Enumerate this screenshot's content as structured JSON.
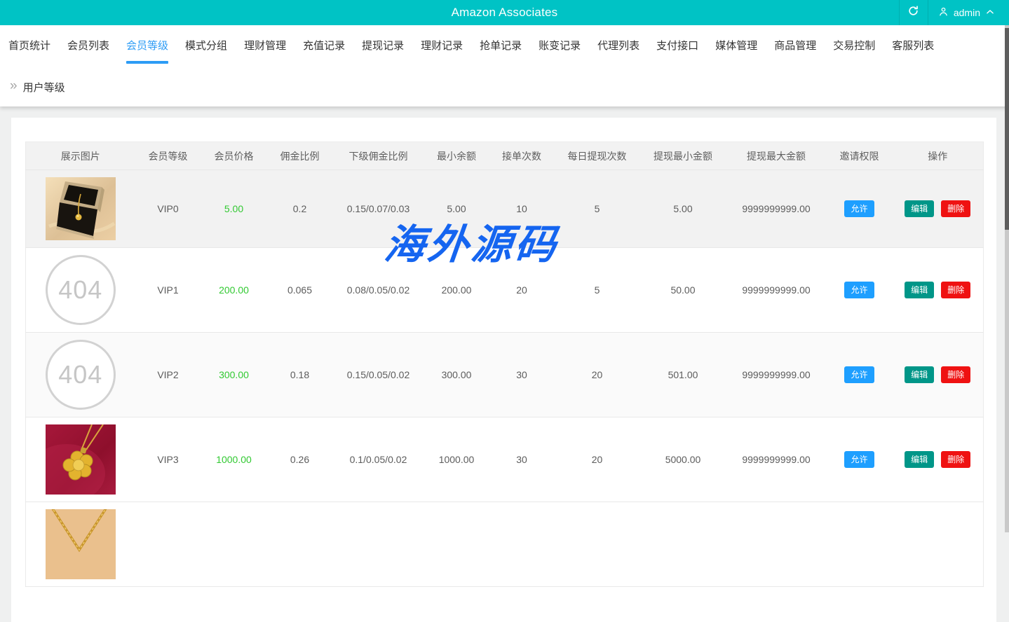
{
  "topbar": {
    "title": "Amazon Associates",
    "username": "admin"
  },
  "nav": {
    "items": [
      {
        "label": "首页统计",
        "active": false
      },
      {
        "label": "会员列表",
        "active": false
      },
      {
        "label": "会员等级",
        "active": true
      },
      {
        "label": "模式分组",
        "active": false
      },
      {
        "label": "理财管理",
        "active": false
      },
      {
        "label": "充值记录",
        "active": false
      },
      {
        "label": "提现记录",
        "active": false
      },
      {
        "label": "理财记录",
        "active": false
      },
      {
        "label": "抢单记录",
        "active": false
      },
      {
        "label": "账变记录",
        "active": false
      },
      {
        "label": "代理列表",
        "active": false
      },
      {
        "label": "支付接口",
        "active": false
      },
      {
        "label": "媒体管理",
        "active": false
      },
      {
        "label": "商品管理",
        "active": false
      },
      {
        "label": "交易控制",
        "active": false
      },
      {
        "label": "客服列表",
        "active": false
      }
    ]
  },
  "breadcrumb": {
    "title": "用户等级"
  },
  "watermark": {
    "text": "海外源码",
    "color": "#1565f0"
  },
  "table": {
    "columns": [
      "展示图片",
      "会员等级",
      "会员价格",
      "佣金比例",
      "下级佣金比例",
      "最小余额",
      "接单次数",
      "每日提现次数",
      "提现最小金额",
      "提现最大金额",
      "邀请权限",
      "操作"
    ],
    "rows": [
      {
        "image": {
          "kind": "jewelry-box",
          "alt": "gold-necklace-in-black-box"
        },
        "level": "VIP0",
        "price": "5.00",
        "commission": "0.2",
        "sub_commission": "0.15/0.07/0.03",
        "min_balance": "5.00",
        "order_count": "10",
        "daily_withdraw_count": "5",
        "min_withdraw": "5.00",
        "max_withdraw": "9999999999.00",
        "invite_label": "允许",
        "edit_label": "编辑",
        "delete_label": "删除"
      },
      {
        "image": {
          "kind": "404",
          "text": "404"
        },
        "level": "VIP1",
        "price": "200.00",
        "commission": "0.065",
        "sub_commission": "0.08/0.05/0.02",
        "min_balance": "200.00",
        "order_count": "20",
        "daily_withdraw_count": "5",
        "min_withdraw": "50.00",
        "max_withdraw": "9999999999.00",
        "invite_label": "允许",
        "edit_label": "编辑",
        "delete_label": "删除"
      },
      {
        "image": {
          "kind": "404",
          "text": "404"
        },
        "level": "VIP2",
        "price": "300.00",
        "commission": "0.18",
        "sub_commission": "0.15/0.05/0.02",
        "min_balance": "300.00",
        "order_count": "30",
        "daily_withdraw_count": "20",
        "min_withdraw": "501.00",
        "max_withdraw": "9999999999.00",
        "invite_label": "允许",
        "edit_label": "编辑",
        "delete_label": "删除"
      },
      {
        "image": {
          "kind": "flower-pendant",
          "alt": "gold-flower-pendant-on-red"
        },
        "level": "VIP3",
        "price": "1000.00",
        "commission": "0.26",
        "sub_commission": "0.1/0.05/0.02",
        "min_balance": "1000.00",
        "order_count": "30",
        "daily_withdraw_count": "20",
        "min_withdraw": "5000.00",
        "max_withdraw": "9999999999.00",
        "invite_label": "允许",
        "edit_label": "编辑",
        "delete_label": "删除"
      },
      {
        "image": {
          "kind": "gold-chain",
          "alt": "gold-chain-on-tan"
        },
        "level": "",
        "price": "",
        "commission": "",
        "sub_commission": "",
        "min_balance": "",
        "order_count": "",
        "daily_withdraw_count": "",
        "min_withdraw": "",
        "max_withdraw": "",
        "invite_label": "",
        "edit_label": "",
        "delete_label": ""
      }
    ]
  },
  "colors": {
    "primary_teal": "#00c3c5",
    "nav_active_blue": "#2d9cf5",
    "price_green": "#32c932",
    "allow_blue": "#1e9fff",
    "edit_green": "#009688",
    "delete_red": "#ef1212",
    "watermark_blue": "#1565f0"
  }
}
